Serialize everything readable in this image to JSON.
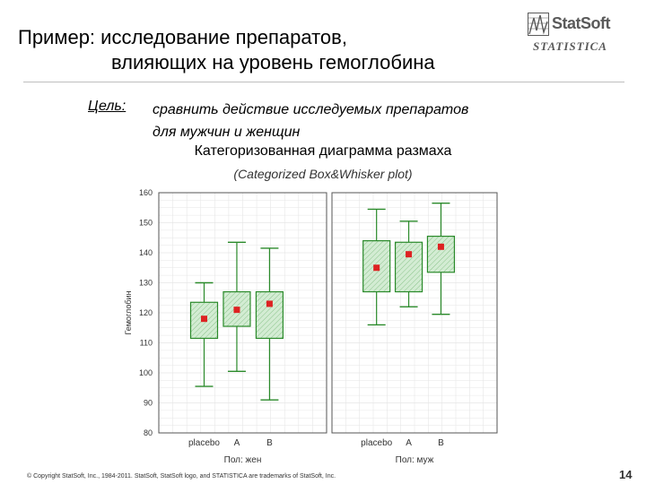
{
  "slide": {
    "title_line1": "Пример: исследование препаратов,",
    "title_line2": "влияющих на уровень гемоглобина",
    "goal_label": "Цель:",
    "goal_line1": "сравнить действие исследуемых препаратов",
    "goal_line2": "для мужчин и женщин",
    "chart_title": "Категоризованная диаграмма размаха",
    "chart_subtitle": "(Categorized Box&Whisker plot)",
    "copyright": "© Copyright StatSoft, Inc., 1984-2011. StatSoft, StatSoft logo, and STATISTICA are trademarks of StatSoft, Inc.",
    "page_number": "14"
  },
  "logo": {
    "name": "StatSoft",
    "product": "STATISTICA"
  },
  "colors": {
    "box_fill": "#d3ecd3",
    "box_edge": "#2a8a2a",
    "mean_marker": "#dd2222",
    "grid": "#e6e6e6",
    "frame": "#555555"
  },
  "chart_data": {
    "type": "box",
    "ylabel": "Гемоглобин",
    "ylim": [
      80,
      160
    ],
    "yticks": [
      80,
      90,
      100,
      110,
      120,
      130,
      140,
      150,
      160
    ],
    "grid": true,
    "panels": [
      {
        "label": "Пол: жен",
        "categories": [
          "placebo",
          "A",
          "B"
        ],
        "boxes": [
          {
            "min": 95.5,
            "q1": 111.5,
            "mean": 118,
            "q3": 123.5,
            "max": 130
          },
          {
            "min": 100.5,
            "q1": 115.5,
            "mean": 121,
            "q3": 127,
            "max": 143.5
          },
          {
            "min": 91,
            "q1": 111.5,
            "mean": 123,
            "q3": 127,
            "max": 141.5
          }
        ]
      },
      {
        "label": "Пол: муж",
        "categories": [
          "placebo",
          "A",
          "B"
        ],
        "boxes": [
          {
            "min": 116,
            "q1": 127,
            "mean": 135,
            "q3": 144,
            "max": 154.5
          },
          {
            "min": 122,
            "q1": 127,
            "mean": 139.5,
            "q3": 143.5,
            "max": 150.5
          },
          {
            "min": 119.5,
            "q1": 133.5,
            "mean": 142,
            "q3": 145.5,
            "max": 156.5
          }
        ]
      }
    ]
  }
}
